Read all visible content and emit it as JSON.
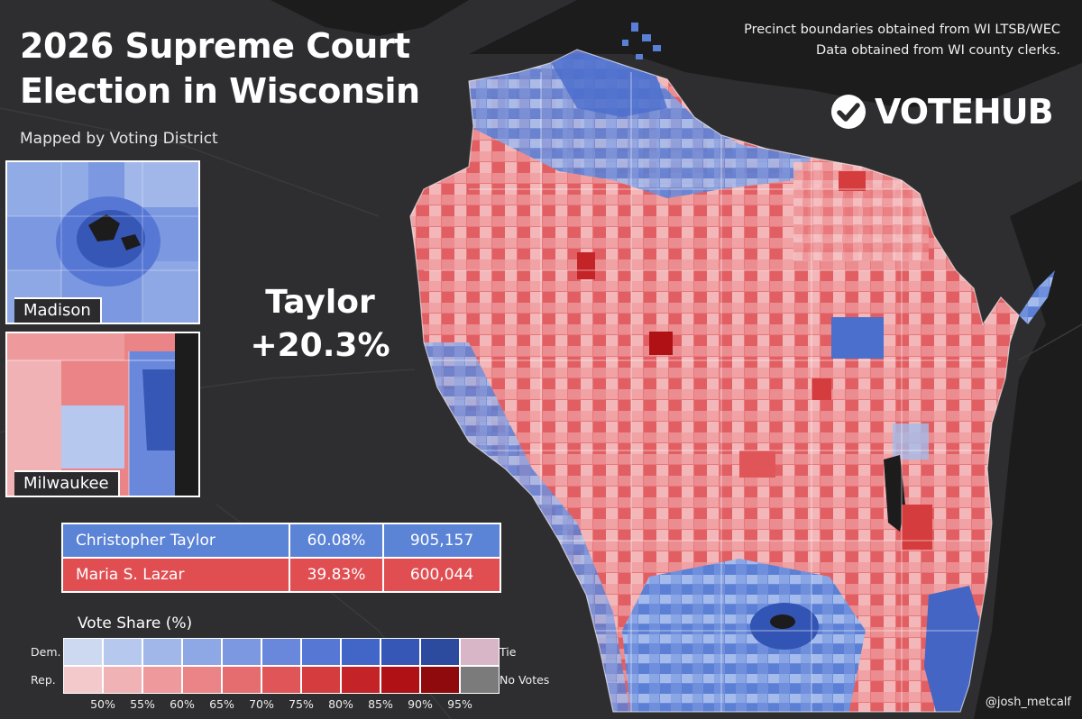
{
  "title": {
    "line1": "2026 Supreme Court",
    "line2": "Election in Wisconsin"
  },
  "subtitle": "Mapped by Voting District",
  "credits": {
    "line1": "Precinct boundaries obtained from WI LTSB/WEC",
    "line2": "Data obtained from WI county clerks."
  },
  "brand": {
    "name": "VOTEHUB",
    "icon": "checkmark-circle-icon"
  },
  "insets": {
    "madison": "Madison",
    "milwaukee": "Milwaukee"
  },
  "margin": {
    "candidate": "Taylor",
    "value": "+20.3%"
  },
  "results": [
    {
      "candidate": "Christopher Taylor",
      "pct": "60.08%",
      "votes": "905,157",
      "party": "dem"
    },
    {
      "candidate": "Maria S. Lazar",
      "pct": "39.83%",
      "votes": "600,044",
      "party": "rep"
    }
  ],
  "legend": {
    "title": "Vote Share (%)",
    "dem_label": "Dem.",
    "rep_label": "Rep.",
    "tie_label": "Tie",
    "novotes_label": "No Votes",
    "ticks": [
      "50%",
      "55%",
      "60%",
      "65%",
      "70%",
      "75%",
      "80%",
      "85%",
      "90%",
      "95%"
    ],
    "dem_colors": [
      "#cdd9f1",
      "#b6c8ee",
      "#a1b7ea",
      "#8ea8e6",
      "#7c98e0",
      "#6a88db",
      "#5777d4",
      "#4265c8",
      "#3657b6",
      "#2c4b9e"
    ],
    "rep_colors": [
      "#f4c9cb",
      "#f1b2b5",
      "#ee9a9d",
      "#ea8487",
      "#e56d70",
      "#df5558",
      "#d43c3e",
      "#c42427",
      "#af1114",
      "#8f0a0d"
    ],
    "tie_color": "#d8b6c8",
    "novotes_color": "#7b7b7b"
  },
  "handle": "@josh_metcalf"
}
